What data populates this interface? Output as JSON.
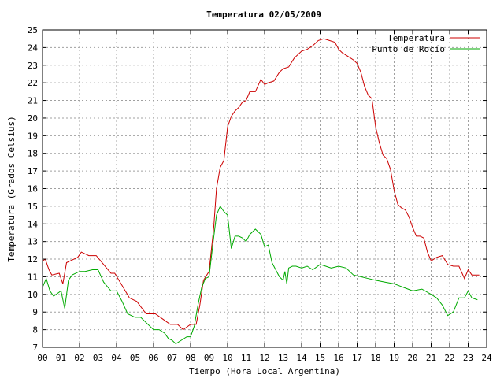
{
  "chart_data": {
    "type": "line",
    "title": "Temperatura 02/05/2009",
    "xlabel": "Tiempo (Hora Local Argentina)",
    "ylabel": "Temperatura (Grados Celsius)",
    "xlim": [
      0,
      24
    ],
    "ylim": [
      7,
      25
    ],
    "grid": true,
    "legend_position": "top-right",
    "x_ticks": [
      "00",
      "01",
      "02",
      "03",
      "04",
      "05",
      "06",
      "07",
      "08",
      "09",
      "10",
      "11",
      "12",
      "13",
      "14",
      "15",
      "16",
      "17",
      "18",
      "19",
      "20",
      "21",
      "22",
      "23",
      "24"
    ],
    "y_ticks": [
      "7",
      "8",
      "9",
      "10",
      "11",
      "12",
      "13",
      "14",
      "15",
      "16",
      "17",
      "18",
      "19",
      "20",
      "21",
      "22",
      "23",
      "24",
      "25"
    ],
    "series": [
      {
        "name": "Temperatura",
        "color": "#cc0000",
        "x": [
          0.0,
          0.15,
          0.35,
          0.5,
          0.9,
          1.1,
          1.3,
          1.7,
          1.9,
          2.1,
          2.5,
          2.9,
          3.3,
          3.7,
          3.9,
          4.3,
          4.7,
          5.1,
          5.6,
          6.1,
          6.5,
          6.9,
          7.3,
          7.6,
          8.0,
          8.3,
          8.5,
          8.7,
          9.0,
          9.25,
          9.4,
          9.6,
          9.8,
          10.0,
          10.2,
          10.4,
          10.6,
          10.8,
          11.0,
          11.2,
          11.5,
          11.8,
          12.0,
          12.2,
          12.5,
          12.8,
          13.0,
          13.3,
          13.6,
          14.0,
          14.3,
          14.6,
          14.9,
          15.2,
          15.5,
          15.8,
          16.0,
          16.2,
          16.5,
          16.8,
          17.0,
          17.2,
          17.4,
          17.6,
          17.8,
          18.0,
          18.2,
          18.4,
          18.6,
          18.8,
          19.0,
          19.2,
          19.4,
          19.6,
          19.8,
          20.0,
          20.2,
          20.4,
          20.6,
          20.8,
          21.0,
          21.3,
          21.6,
          21.9,
          22.2,
          22.5,
          22.8,
          23.0,
          23.2,
          23.4,
          23.6
        ],
        "y": [
          11.9,
          12.0,
          11.4,
          11.1,
          11.2,
          10.6,
          11.8,
          12.0,
          12.1,
          12.4,
          12.2,
          12.2,
          11.7,
          11.2,
          11.2,
          10.5,
          9.8,
          9.6,
          8.9,
          8.9,
          8.6,
          8.3,
          8.3,
          8.0,
          8.3,
          8.3,
          9.4,
          10.8,
          11.3,
          13.8,
          16.0,
          17.2,
          17.6,
          19.5,
          20.1,
          20.4,
          20.6,
          20.9,
          21.0,
          21.5,
          21.5,
          22.2,
          21.9,
          22.0,
          22.1,
          22.6,
          22.8,
          22.9,
          23.4,
          23.8,
          23.9,
          24.1,
          24.4,
          24.5,
          24.4,
          24.3,
          23.9,
          23.7,
          23.5,
          23.3,
          23.1,
          22.6,
          21.8,
          21.3,
          21.1,
          19.5,
          18.6,
          17.9,
          17.7,
          17.1,
          15.9,
          15.1,
          14.9,
          14.8,
          14.4,
          13.8,
          13.3,
          13.3,
          13.2,
          12.4,
          11.9,
          12.1,
          12.2,
          11.7,
          11.6,
          11.6,
          10.9,
          11.4,
          11.1,
          11.1,
          11.1
        ]
      },
      {
        "name": "Punto de Rocío",
        "color": "#00aa00",
        "x": [
          0.0,
          0.2,
          0.4,
          0.6,
          1.0,
          1.2,
          1.4,
          1.6,
          2.0,
          2.3,
          2.7,
          3.0,
          3.3,
          3.7,
          4.0,
          4.3,
          4.6,
          5.0,
          5.3,
          5.6,
          6.0,
          6.3,
          6.6,
          6.8,
          7.0,
          7.2,
          7.5,
          7.8,
          8.0,
          8.2,
          8.4,
          8.6,
          8.8,
          9.0,
          9.2,
          9.4,
          9.6,
          9.8,
          10.0,
          10.2,
          10.4,
          10.6,
          10.8,
          11.0,
          11.2,
          11.5,
          11.8,
          12.0,
          12.2,
          12.4,
          12.6,
          12.8,
          13.0,
          13.1,
          13.2,
          13.3,
          13.5,
          13.7,
          14.0,
          14.3,
          14.6,
          15.0,
          15.3,
          15.6,
          16.0,
          16.4,
          16.8,
          17.2,
          17.6,
          18.0,
          18.5,
          19.0,
          19.5,
          20.0,
          20.5,
          21.0,
          21.3,
          21.6,
          21.9,
          22.2,
          22.5,
          22.8,
          23.0,
          23.2,
          23.5
        ],
        "y": [
          10.4,
          10.9,
          10.2,
          9.9,
          10.2,
          9.2,
          10.8,
          11.1,
          11.3,
          11.3,
          11.4,
          11.4,
          10.7,
          10.2,
          10.2,
          9.6,
          8.9,
          8.7,
          8.7,
          8.4,
          8.0,
          8.0,
          7.8,
          7.5,
          7.4,
          7.2,
          7.4,
          7.6,
          7.6,
          8.2,
          9.4,
          10.4,
          10.9,
          11.0,
          12.8,
          14.5,
          15.0,
          14.7,
          14.5,
          12.6,
          13.3,
          13.3,
          13.2,
          13.0,
          13.4,
          13.7,
          13.4,
          12.7,
          12.8,
          11.8,
          11.4,
          11.0,
          10.8,
          11.3,
          10.6,
          11.5,
          11.6,
          11.6,
          11.5,
          11.6,
          11.4,
          11.7,
          11.6,
          11.5,
          11.6,
          11.5,
          11.1,
          11.0,
          10.9,
          10.8,
          10.7,
          10.6,
          10.4,
          10.2,
          10.3,
          10.0,
          9.8,
          9.4,
          8.8,
          9.0,
          9.8,
          9.8,
          10.2,
          9.8,
          9.7
        ]
      }
    ]
  }
}
